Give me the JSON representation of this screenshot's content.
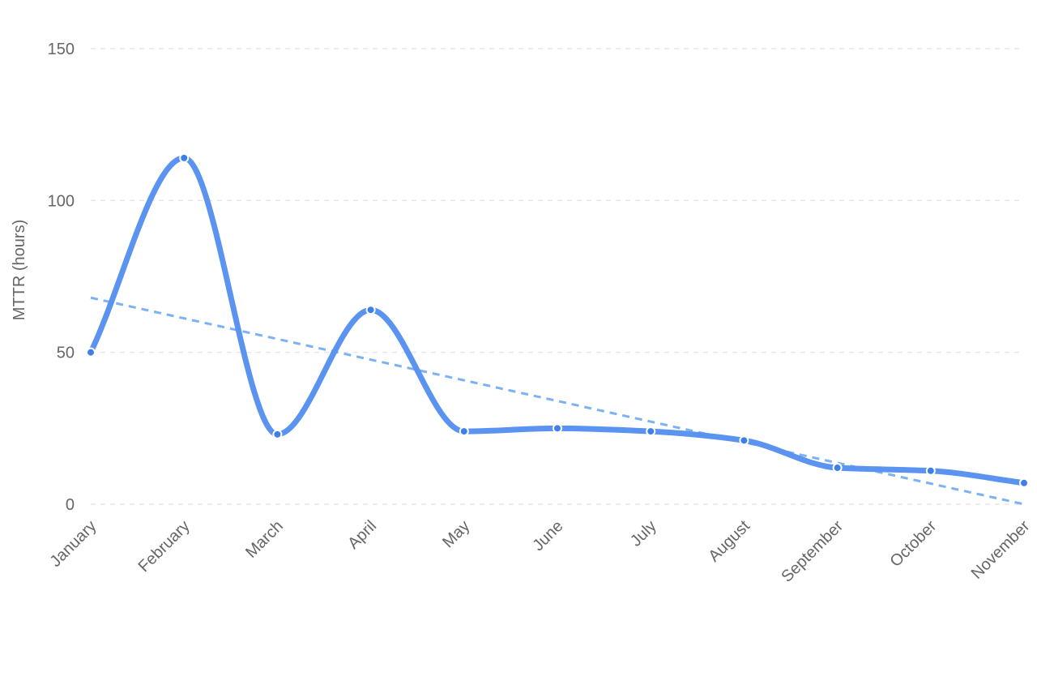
{
  "chart_data": {
    "type": "line",
    "title": "",
    "xlabel": "",
    "ylabel": "MTTR (hours)",
    "ylim": [
      0,
      150
    ],
    "yticks": [
      0,
      50,
      100,
      150
    ],
    "grid": true,
    "legend": "none",
    "categories": [
      "January",
      "February",
      "March",
      "April",
      "May",
      "June",
      "July",
      "August",
      "September",
      "October",
      "November"
    ],
    "series": [
      {
        "values": [
          50,
          114,
          23,
          64,
          24,
          25,
          24,
          21,
          12,
          11,
          7
        ],
        "color": "#5b93f0",
        "style": "smooth-solid",
        "markers": true
      },
      {
        "kind": "trendline",
        "values": [
          68,
          61.2,
          54.4,
          47.6,
          40.8,
          34,
          27.2,
          20.4,
          13.6,
          6.8,
          0
        ],
        "color": "#7ab2f5",
        "style": "dashed"
      }
    ]
  }
}
